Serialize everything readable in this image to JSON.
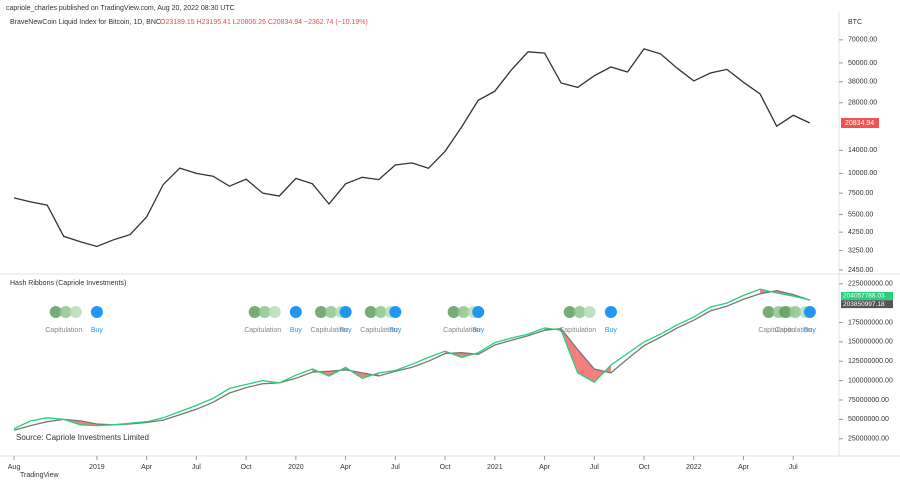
{
  "header": {
    "published": "capriole_charles published on TradingView.com, Aug 20, 2022 08:30 UTC",
    "footer": "TradingView"
  },
  "chart_data": [
    {
      "type": "line",
      "title": "BraveNewCoin Liquid Index for Bitcoin, 1D, BNC",
      "ohlc": "O23189.15 H23195.41 L20806.26 C20834.94 −2362.74 (−10.19%)",
      "axis_label": "BTC",
      "log_scale": true,
      "color": "#333333",
      "x": [
        "2018-08",
        "2018-09",
        "2018-10",
        "2018-11",
        "2018-12",
        "2019-01",
        "2019-02",
        "2019-03",
        "2019-04",
        "2019-05",
        "2019-06",
        "2019-07",
        "2019-08",
        "2019-09",
        "2019-10",
        "2019-11",
        "2019-12",
        "2020-01",
        "2020-02",
        "2020-03",
        "2020-04",
        "2020-05",
        "2020-06",
        "2020-07",
        "2020-08",
        "2020-09",
        "2020-10",
        "2020-11",
        "2020-12",
        "2021-01",
        "2021-02",
        "2021-03",
        "2021-04",
        "2021-05",
        "2021-06",
        "2021-07",
        "2021-08",
        "2021-09",
        "2021-10",
        "2021-11",
        "2021-12",
        "2022-01",
        "2022-02",
        "2022-03",
        "2022-04",
        "2022-05",
        "2022-06",
        "2022-07",
        "2022-08"
      ],
      "values": [
        7000,
        6600,
        6300,
        4000,
        3700,
        3450,
        3800,
        4100,
        5300,
        8500,
        10800,
        10000,
        9600,
        8300,
        9200,
        7500,
        7200,
        9300,
        8600,
        6400,
        8600,
        9450,
        9140,
        11300,
        11650,
        10780,
        13800,
        19700,
        29000,
        33100,
        45200,
        58800,
        57700,
        37300,
        35000,
        41500,
        47100,
        43800,
        61300,
        57000,
        46300,
        38500,
        43200,
        45500,
        37700,
        31800,
        19900,
        23300,
        20834.94
      ],
      "xlim": [
        "2018-08",
        "2022-10"
      ],
      "ylim": [
        2378,
        105000
      ],
      "yticks": [
        {
          "value": 70000,
          "label": "70000.00"
        },
        {
          "value": 50000,
          "label": "50000.00"
        },
        {
          "value": 38000,
          "label": "38000.00"
        },
        {
          "value": 28000,
          "label": "28000.00"
        },
        {
          "value": 14000,
          "label": "14000.00"
        },
        {
          "value": 10000,
          "label": "10000.00"
        },
        {
          "value": 7500,
          "label": "7500.00"
        },
        {
          "value": 5500,
          "label": "5500.00"
        },
        {
          "value": 4250,
          "label": "4250.00"
        },
        {
          "value": 3250,
          "label": "3250.00"
        },
        {
          "value": 2450,
          "label": "2450.00"
        }
      ],
      "grid": false
    },
    {
      "type": "line",
      "title": "Hash Ribbons (Capriole Investments)",
      "annotation": "Source: Capriole Investments Limited",
      "fill_color": "#ef5350",
      "x": [
        "2018-08",
        "2018-09",
        "2018-10",
        "2018-11",
        "2018-12",
        "2019-01",
        "2019-02",
        "2019-03",
        "2019-04",
        "2019-05",
        "2019-06",
        "2019-07",
        "2019-08",
        "2019-09",
        "2019-10",
        "2019-11",
        "2019-12",
        "2020-01",
        "2020-02",
        "2020-03",
        "2020-04",
        "2020-05",
        "2020-06",
        "2020-07",
        "2020-08",
        "2020-09",
        "2020-10",
        "2020-11",
        "2020-12",
        "2021-01",
        "2021-02",
        "2021-03",
        "2021-04",
        "2021-05",
        "2021-06",
        "2021-07",
        "2021-08",
        "2021-09",
        "2021-10",
        "2021-11",
        "2021-12",
        "2022-01",
        "2022-02",
        "2022-03",
        "2022-04",
        "2022-05",
        "2022-06",
        "2022-07",
        "2022-08"
      ],
      "series": [
        {
          "color": "#26d07c",
          "values": [
            38000000,
            48000000,
            52000000,
            50000000,
            43000000,
            42000000,
            43000000,
            45000000,
            47000000,
            52000000,
            60000000,
            68000000,
            77000000,
            90000000,
            95000000,
            100000000,
            97000000,
            107000000,
            115000000,
            106000000,
            117000000,
            103000000,
            110000000,
            113000000,
            121000000,
            130000000,
            138000000,
            130000000,
            136000000,
            149000000,
            155000000,
            160000000,
            168000000,
            165000000,
            110000000,
            98000000,
            120000000,
            135000000,
            150000000,
            160000000,
            172000000,
            182000000,
            195000000,
            200000000,
            210000000,
            218000000,
            213000000,
            209000000,
            204057788.03
          ]
        },
        {
          "color": "#777777",
          "values": [
            36000000,
            42000000,
            47000000,
            50000000,
            48000000,
            44000000,
            43000000,
            44000000,
            46000000,
            49000000,
            56000000,
            63000000,
            72000000,
            84000000,
            91000000,
            96000000,
            97000000,
            103000000,
            111000000,
            112000000,
            114000000,
            110000000,
            106000000,
            112000000,
            117000000,
            125000000,
            135000000,
            136000000,
            134000000,
            146000000,
            152000000,
            158000000,
            165000000,
            167000000,
            140000000,
            115000000,
            110000000,
            128000000,
            145000000,
            156000000,
            168000000,
            178000000,
            190000000,
            196000000,
            205000000,
            212000000,
            216000000,
            211000000,
            203850997.18
          ]
        }
      ],
      "signals": [
        {
          "label": "Capitulation",
          "x": "2018-11"
        },
        {
          "label": "Buy",
          "x": "2019-01"
        },
        {
          "label": "Capitulation",
          "x": "2019-11"
        },
        {
          "label": "Buy",
          "x": "2020-01"
        },
        {
          "label": "Capitulation",
          "x": "2020-03"
        },
        {
          "label": "Buy",
          "x": "2020-04"
        },
        {
          "label": "Capitulation",
          "x": "2020-06"
        },
        {
          "label": "Buy",
          "x": "2020-07"
        },
        {
          "label": "Capitulation",
          "x": "2020-11"
        },
        {
          "label": "Buy",
          "x": "2020-12"
        },
        {
          "label": "Capitulation",
          "x": "2021-06"
        },
        {
          "label": "Buy",
          "x": "2021-08"
        },
        {
          "label": "Capitulation",
          "x": "2022-06"
        },
        {
          "label": "Capitulation",
          "x": "2022-07"
        },
        {
          "label": "Buy",
          "x": "2022-08"
        }
      ],
      "xlim": [
        "2018-08",
        "2022-10"
      ],
      "ylim": [
        4000000,
        235000000
      ],
      "yticks": [
        {
          "value": 225000000,
          "label": "225000000.00"
        },
        {
          "value": 175000000,
          "label": "175000000.00"
        },
        {
          "value": 150000000,
          "label": "150000000.00"
        },
        {
          "value": 125000000,
          "label": "125000000.00"
        },
        {
          "value": 100000000,
          "label": "100000000.00"
        },
        {
          "value": 75000000,
          "label": "75000000.00"
        },
        {
          "value": 50000000,
          "label": "50000000.00"
        },
        {
          "value": 25000000,
          "label": "25000000.00"
        }
      ],
      "xticks": [
        {
          "value": "2018-08",
          "label": "Aug"
        },
        {
          "value": "2019-01",
          "label": "2019"
        },
        {
          "value": "2019-04",
          "label": "Apr"
        },
        {
          "value": "2019-07",
          "label": "Jul"
        },
        {
          "value": "2019-10",
          "label": "Oct"
        },
        {
          "value": "2020-01",
          "label": "2020"
        },
        {
          "value": "2020-04",
          "label": "Apr"
        },
        {
          "value": "2020-07",
          "label": "Jul"
        },
        {
          "value": "2020-10",
          "label": "Oct"
        },
        {
          "value": "2021-01",
          "label": "2021"
        },
        {
          "value": "2021-04",
          "label": "Apr"
        },
        {
          "value": "2021-07",
          "label": "Jul"
        },
        {
          "value": "2021-10",
          "label": "Oct"
        },
        {
          "value": "2022-01",
          "label": "2022"
        },
        {
          "value": "2022-04",
          "label": "Apr"
        },
        {
          "value": "2022-07",
          "label": "Jul"
        }
      ],
      "grid": false
    }
  ]
}
